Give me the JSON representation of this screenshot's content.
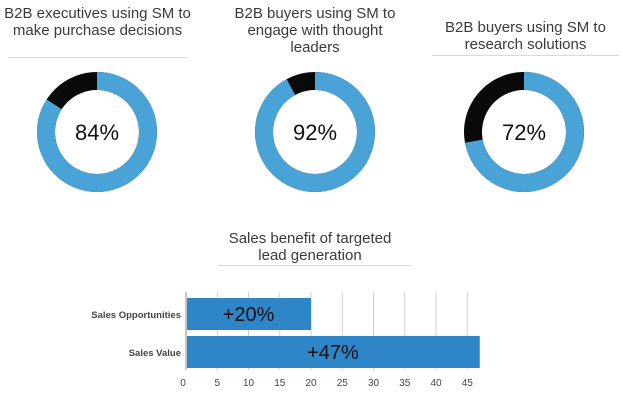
{
  "colors": {
    "filled": "#4aa3d6",
    "remainder": "#0a0a0a",
    "bar": "#2e86c8",
    "grid": "#d0d0d0",
    "rule": "#d9d9d9"
  },
  "chart_data": [
    {
      "type": "pie",
      "title": "B2B executives using SM to make purchase decisions",
      "title_lines": [
        "B2B executives using SM to",
        "make purchase decisions"
      ],
      "value": 84,
      "label": "84%"
    },
    {
      "type": "pie",
      "title": "B2B buyers using SM to engage with thought leaders",
      "title_lines": [
        "B2B buyers using SM to",
        "engage with thought",
        "leaders"
      ],
      "value": 92,
      "label": "92%"
    },
    {
      "type": "pie",
      "title": "B2B buyers using SM to research solutions",
      "title_lines": [
        "B2B buyers using SM to",
        "research solutions"
      ],
      "value": 72,
      "label": "72%"
    },
    {
      "type": "bar",
      "orientation": "horizontal",
      "title": "Sales benefit of targeted lead generation",
      "title_lines": [
        "Sales benefit of targeted",
        "lead generation"
      ],
      "categories": [
        "Sales Opportunities",
        "Sales Value"
      ],
      "values": [
        20,
        47
      ],
      "data_labels": [
        "+20%",
        "+47%"
      ],
      "xlim": [
        0,
        48
      ],
      "xticks": [
        0,
        5,
        10,
        15,
        20,
        25,
        30,
        35,
        40,
        45
      ],
      "grid": true
    }
  ]
}
